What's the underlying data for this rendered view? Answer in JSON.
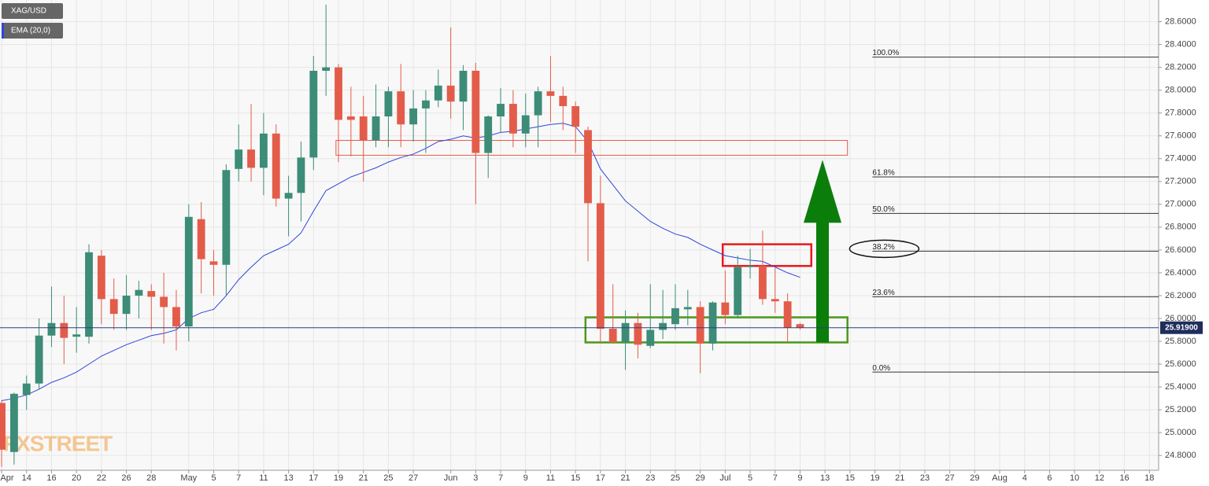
{
  "chart_data": {
    "type": "candlestick",
    "name": "XAG/USD",
    "up_color": "#3c8c78",
    "down_color": "#e35c4a",
    "open": [
      25.26,
      24.83,
      25.33,
      25.43,
      25.85,
      25.96,
      25.84,
      25.84,
      26.55,
      26.17,
      26.04,
      26.2,
      26.24,
      26.19,
      26.1,
      25.93,
      26.87,
      26.5,
      26.47,
      27.31,
      27.48,
      27.32,
      27.62,
      27.05,
      27.1,
      27.41,
      28.17,
      28.2,
      27.77,
      27.77,
      27.56,
      27.77,
      27.99,
      27.7,
      27.84,
      27.91,
      28.04,
      27.9,
      28.17,
      27.45,
      27.77,
      27.88,
      27.62,
      27.78,
      27.99,
      27.95,
      27.86,
      27.65,
      27.01,
      25.91,
      25.79,
      25.96,
      25.76,
      25.9,
      25.95,
      26.08,
      26.1,
      25.78,
      26.14,
      26.03,
      26.45,
      26.46,
      26.17,
      26.15,
      25.95
    ],
    "high": [
      25.28,
      25.35,
      25.5,
      26.0,
      26.28,
      26.2,
      26.1,
      26.65,
      26.6,
      26.35,
      26.38,
      26.33,
      26.3,
      26.4,
      26.25,
      27.0,
      27.02,
      26.6,
      27.35,
      27.7,
      27.88,
      27.8,
      27.7,
      27.25,
      27.55,
      28.3,
      28.75,
      28.23,
      28.03,
      27.95,
      28.05,
      28.03,
      28.23,
      28.0,
      28.0,
      28.18,
      28.55,
      28.22,
      28.24,
      27.78,
      28.02,
      28.0,
      27.97,
      28.03,
      28.3,
      28.03,
      27.9,
      27.68,
      27.25,
      26.3,
      26.07,
      26.05,
      26.3,
      26.25,
      26.3,
      26.25,
      26.15,
      26.15,
      26.42,
      26.55,
      26.61,
      26.77,
      26.44,
      26.22,
      25.96
    ],
    "low": [
      24.7,
      24.72,
      25.2,
      25.38,
      25.75,
      25.6,
      25.7,
      25.78,
      25.95,
      25.9,
      25.9,
      26.0,
      25.9,
      25.78,
      25.72,
      25.8,
      26.22,
      26.2,
      26.2,
      27.2,
      27.2,
      27.08,
      26.98,
      26.72,
      26.85,
      27.3,
      27.95,
      27.37,
      27.42,
      27.2,
      27.5,
      27.5,
      27.5,
      27.55,
      27.45,
      27.85,
      27.75,
      27.65,
      27.0,
      27.23,
      27.63,
      27.5,
      27.5,
      27.5,
      27.72,
      27.65,
      27.45,
      26.5,
      25.78,
      25.78,
      25.55,
      25.65,
      25.74,
      25.82,
      25.9,
      25.94,
      25.52,
      25.72,
      25.95,
      26.0,
      26.35,
      26.12,
      26.05,
      25.79,
      25.9
    ],
    "close": [
      24.85,
      25.34,
      25.43,
      25.85,
      25.96,
      25.83,
      25.86,
      26.58,
      26.17,
      26.04,
      26.2,
      26.25,
      26.19,
      26.1,
      25.93,
      26.89,
      26.52,
      26.47,
      27.3,
      27.48,
      27.32,
      27.62,
      27.05,
      27.1,
      27.41,
      28.17,
      28.2,
      27.74,
      27.74,
      27.56,
      27.77,
      27.99,
      27.7,
      27.84,
      27.91,
      28.04,
      27.9,
      28.17,
      27.45,
      27.77,
      27.88,
      27.62,
      27.78,
      27.99,
      27.95,
      27.86,
      27.68,
      27.01,
      25.91,
      25.79,
      25.96,
      25.77,
      25.9,
      25.96,
      26.09,
      26.1,
      25.78,
      26.14,
      26.03,
      26.45,
      26.46,
      26.17,
      26.15,
      25.92,
      25.919
    ],
    "ema": {
      "name": "EMA (20,0)",
      "color": "#2f45d8",
      "values": [
        25.28,
        25.3,
        25.33,
        25.38,
        25.44,
        25.48,
        25.53,
        25.6,
        25.67,
        25.72,
        25.77,
        25.81,
        25.85,
        25.87,
        25.9,
        26.0,
        26.05,
        26.08,
        26.2,
        26.34,
        26.45,
        26.55,
        26.6,
        26.65,
        26.75,
        26.94,
        27.12,
        27.18,
        27.24,
        27.28,
        27.32,
        27.37,
        27.41,
        27.44,
        27.49,
        27.55,
        27.57,
        27.6,
        27.58,
        27.6,
        27.63,
        27.64,
        27.66,
        27.68,
        27.7,
        27.71,
        27.68,
        27.55,
        27.31,
        27.17,
        27.03,
        26.94,
        26.85,
        26.79,
        26.74,
        26.71,
        26.65,
        26.6,
        26.55,
        26.53,
        26.51,
        26.5,
        26.45,
        26.4,
        26.36
      ]
    },
    "last_price": {
      "value": 25.919,
      "label": "25.91900"
    },
    "xlim": [
      -0.13,
      92.74
    ],
    "ylim": [
      24.67,
      28.79
    ],
    "yticks": [
      {
        "value": 24.8,
        "label": "24.8000"
      },
      {
        "value": 25.0,
        "label": "25.0000"
      },
      {
        "value": 25.2,
        "label": "25.2000"
      },
      {
        "value": 25.4,
        "label": "25.4000"
      },
      {
        "value": 25.6,
        "label": "25.6000"
      },
      {
        "value": 25.8,
        "label": "25.8000"
      },
      {
        "value": 26.0,
        "label": "26.0000"
      },
      {
        "value": 26.2,
        "label": "26.2000"
      },
      {
        "value": 26.4,
        "label": "26.4000"
      },
      {
        "value": 26.6,
        "label": "26.6000"
      },
      {
        "value": 26.8,
        "label": "26.8000"
      },
      {
        "value": 27.0,
        "label": "27.0000"
      },
      {
        "value": 27.2,
        "label": "27.2000"
      },
      {
        "value": 27.4,
        "label": "27.4000"
      },
      {
        "value": 27.6,
        "label": "27.6000"
      },
      {
        "value": 27.8,
        "label": "27.8000"
      },
      {
        "value": 28.0,
        "label": "28.0000"
      },
      {
        "value": 28.2,
        "label": "28.2000"
      },
      {
        "value": 28.4,
        "label": "28.4000"
      },
      {
        "value": 28.6,
        "label": "28.6000"
      }
    ],
    "xticks": [
      {
        "value": 0,
        "label": "Apr"
      },
      {
        "value": 2,
        "label": "14"
      },
      {
        "value": 4,
        "label": "16"
      },
      {
        "value": 6,
        "label": "20"
      },
      {
        "value": 8,
        "label": "22"
      },
      {
        "value": 10,
        "label": "26"
      },
      {
        "value": 12,
        "label": "28"
      },
      {
        "value": 15,
        "label": "May"
      },
      {
        "value": 17,
        "label": "5"
      },
      {
        "value": 19,
        "label": "7"
      },
      {
        "value": 21,
        "label": "11"
      },
      {
        "value": 23,
        "label": "13"
      },
      {
        "value": 25,
        "label": "17"
      },
      {
        "value": 27,
        "label": "19"
      },
      {
        "value": 29,
        "label": "21"
      },
      {
        "value": 31,
        "label": "25"
      },
      {
        "value": 33,
        "label": "27"
      },
      {
        "value": 36,
        "label": "Jun"
      },
      {
        "value": 38,
        "label": "3"
      },
      {
        "value": 40,
        "label": "7"
      },
      {
        "value": 42,
        "label": "9"
      },
      {
        "value": 44,
        "label": "11"
      },
      {
        "value": 46,
        "label": "15"
      },
      {
        "value": 48,
        "label": "17"
      },
      {
        "value": 50,
        "label": "21"
      },
      {
        "value": 52,
        "label": "23"
      },
      {
        "value": 54,
        "label": "25"
      },
      {
        "value": 56,
        "label": "29"
      },
      {
        "value": 58,
        "label": "Jul"
      },
      {
        "value": 60,
        "label": "5"
      },
      {
        "value": 62,
        "label": "7"
      },
      {
        "value": 64,
        "label": "9"
      },
      {
        "value": 66,
        "label": "13"
      },
      {
        "value": 68,
        "label": "15"
      },
      {
        "value": 70,
        "label": "19"
      },
      {
        "value": 72,
        "label": "21"
      },
      {
        "value": 74,
        "label": "23"
      },
      {
        "value": 76,
        "label": "27"
      },
      {
        "value": 78,
        "label": "29"
      },
      {
        "value": 80,
        "label": "Aug"
      },
      {
        "value": 82,
        "label": "4"
      },
      {
        "value": 84,
        "label": "6"
      },
      {
        "value": 86,
        "label": "10"
      },
      {
        "value": 88,
        "label": "12"
      },
      {
        "value": 90,
        "label": "16"
      },
      {
        "value": 92,
        "label": "18"
      }
    ],
    "grid": true,
    "fib_levels": [
      {
        "name": "100.0%",
        "price": 28.29
      },
      {
        "name": "61.8%",
        "price": 27.24
      },
      {
        "name": "50.0%",
        "price": 26.92
      },
      {
        "name": "38.2%",
        "price": 26.59
      },
      {
        "name": "23.6%",
        "price": 26.19
      },
      {
        "name": "0.0%",
        "price": 25.53
      }
    ],
    "fib_start": 69.8,
    "zones": [
      {
        "color": "#e35c4a",
        "x": [
          26.8,
          67.8
        ],
        "y": [
          27.43,
          27.56
        ]
      },
      {
        "color": "#e8191e",
        "x": [
          57.8,
          64.9
        ],
        "y": [
          26.46,
          26.65
        ]
      },
      {
        "color": "#4a9a1a",
        "x": [
          46.8,
          67.8
        ],
        "y": [
          25.79,
          26.01
        ]
      }
    ],
    "arrow": {
      "color": "#0b7d0b",
      "x": 65.8,
      "y": [
        25.79,
        27.39
      ]
    },
    "watermark": "FXSTREET"
  }
}
